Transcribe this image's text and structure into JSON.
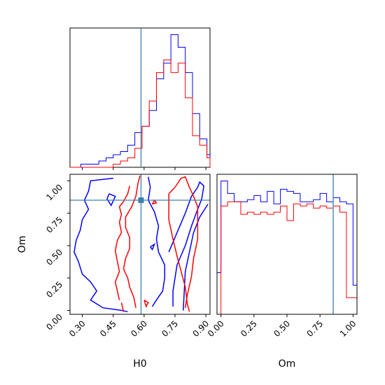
{
  "chart_data": [
    {
      "type": "histogram",
      "panel": "H0 marginal",
      "xlim": [
        0.24,
        0.92
      ],
      "xticks": [
        0.3,
        0.45,
        0.6,
        0.75,
        0.9
      ],
      "truth_x": 0.585,
      "bin_edges": [
        0.24,
        0.2575,
        0.275,
        0.2925,
        0.31,
        0.3275,
        0.345,
        0.3625,
        0.38,
        0.3975,
        0.415,
        0.4325,
        0.45,
        0.4675,
        0.485,
        0.5025,
        0.52,
        0.5375,
        0.555,
        0.5725,
        0.59,
        0.6075,
        0.625,
        0.6425,
        0.66,
        0.6775,
        0.695,
        0.7125,
        0.73,
        0.7475,
        0.765,
        0.7825,
        0.8,
        0.8175,
        0.835,
        0.8525,
        0.87,
        0.8875,
        0.905,
        0.92
      ],
      "series": [
        {
          "color": "#0000ff",
          "counts": [
            0,
            0,
            0,
            1,
            1,
            1,
            1,
            1,
            2,
            2,
            3,
            3,
            4,
            4,
            5,
            5,
            7,
            7,
            11,
            11,
            13,
            13,
            18,
            18,
            28,
            28,
            33,
            33,
            42,
            42,
            38,
            38,
            30,
            30,
            17,
            17,
            9,
            9,
            4
          ]
        },
        {
          "color": "#ff0000",
          "counts": [
            0,
            0,
            0,
            0,
            0,
            0,
            0,
            0,
            0,
            0,
            0,
            0,
            1,
            1,
            2,
            2,
            3,
            3,
            6,
            6,
            13,
            13,
            21,
            21,
            30,
            30,
            34,
            34,
            30,
            30,
            33,
            33,
            22,
            22,
            10,
            10,
            7,
            7,
            3
          ]
        }
      ]
    },
    {
      "type": "contour",
      "panel": "H0 vs Om joint",
      "xlabel": "H0",
      "ylabel": "Om",
      "xlim": [
        0.24,
        0.92
      ],
      "ylim": [
        -0.03,
        1.05
      ],
      "xticks": [
        0.3,
        0.45,
        0.6,
        0.75,
        0.9
      ],
      "yticks": [
        0.0,
        0.25,
        0.5,
        0.75,
        1.0
      ],
      "truth_point": [
        0.585,
        0.85
      ],
      "series": [
        {
          "color": "#0000ff",
          "contours": [
            [
              [
                0.45,
                1.02
              ],
              [
                0.34,
                1.0
              ],
              [
                0.33,
                0.92
              ],
              [
                0.31,
                0.85
              ],
              [
                0.33,
                0.78
              ],
              [
                0.3,
                0.7
              ],
              [
                0.29,
                0.62
              ],
              [
                0.27,
                0.54
              ],
              [
                0.26,
                0.45
              ],
              [
                0.28,
                0.38
              ],
              [
                0.3,
                0.28
              ],
              [
                0.34,
                0.22
              ],
              [
                0.37,
                0.15
              ],
              [
                0.34,
                0.08
              ],
              [
                0.4,
                0.02
              ],
              [
                0.49,
                0.0
              ],
              [
                0.52,
                -0.01
              ]
            ],
            [
              [
                0.43,
                0.9
              ],
              [
                0.46,
                0.88
              ],
              [
                0.44,
                0.81
              ],
              [
                0.42,
                0.86
              ],
              [
                0.43,
                0.9
              ]
            ],
            [
              [
                0.62,
                1.03
              ],
              [
                0.63,
                0.95
              ],
              [
                0.62,
                0.85
              ],
              [
                0.65,
                0.76
              ],
              [
                0.67,
                0.65
              ],
              [
                0.66,
                0.55
              ],
              [
                0.67,
                0.45
              ],
              [
                0.7,
                0.35
              ],
              [
                0.7,
                0.25
              ],
              [
                0.69,
                0.15
              ],
              [
                0.66,
                0.08
              ],
              [
                0.64,
                0.03
              ]
            ],
            [
              [
                0.72,
                0.45
              ],
              [
                0.76,
                0.6
              ],
              [
                0.8,
                0.75
              ],
              [
                0.83,
                0.88
              ],
              [
                0.86,
                0.95
              ],
              [
                0.87,
                0.99
              ],
              [
                0.89,
                0.96
              ],
              [
                0.88,
                0.86
              ],
              [
                0.86,
                0.78
              ],
              [
                0.83,
                0.65
              ],
              [
                0.8,
                0.5
              ],
              [
                0.76,
                0.35
              ],
              [
                0.74,
                0.15
              ],
              [
                0.74,
                0.03
              ]
            ],
            [
              [
                0.63,
                0.49
              ],
              [
                0.65,
                0.51
              ],
              [
                0.64,
                0.47
              ],
              [
                0.63,
                0.49
              ]
            ],
            [
              [
                0.79,
                0.0
              ],
              [
                0.8,
                0.3
              ],
              [
                0.82,
                0.45
              ],
              [
                0.84,
                0.6
              ],
              [
                0.87,
                0.72
              ],
              [
                0.91,
                0.82
              ]
            ]
          ]
        },
        {
          "color": "#ff0000",
          "contours": [
            [
              [
                0.56,
                0.02
              ],
              [
                0.55,
                0.1
              ],
              [
                0.53,
                0.18
              ],
              [
                0.52,
                0.25
              ],
              [
                0.5,
                0.32
              ],
              [
                0.51,
                0.4
              ],
              [
                0.53,
                0.48
              ],
              [
                0.53,
                0.56
              ],
              [
                0.51,
                0.64
              ],
              [
                0.51,
                0.72
              ],
              [
                0.54,
                0.8
              ],
              [
                0.56,
                0.88
              ],
              [
                0.57,
                0.98
              ],
              [
                0.58,
                1.04
              ]
            ],
            [
              [
                0.48,
                0.08
              ],
              [
                0.47,
                0.15
              ],
              [
                0.46,
                0.22
              ],
              [
                0.48,
                0.3
              ],
              [
                0.47,
                0.38
              ],
              [
                0.46,
                0.46
              ],
              [
                0.47,
                0.54
              ],
              [
                0.49,
                0.6
              ],
              [
                0.48,
                0.68
              ],
              [
                0.49,
                0.74
              ],
              [
                0.48,
                0.8
              ],
              [
                0.5,
                0.84
              ],
              [
                0.52,
                0.9
              ],
              [
                0.53,
                0.96
              ]
            ],
            [
              [
                0.49,
                0.06
              ],
              [
                0.5,
                -0.01
              ]
            ],
            [
              [
                0.6,
                0.08
              ],
              [
                0.62,
                0.06
              ],
              [
                0.61,
                0.03
              ],
              [
                0.6,
                0.08
              ]
            ],
            [
              [
                0.64,
                0.82
              ],
              [
                0.65,
                0.85
              ],
              [
                0.66,
                0.83
              ],
              [
                0.64,
                0.82
              ]
            ],
            [
              [
                0.72,
                0.9
              ],
              [
                0.72,
                0.7
              ],
              [
                0.74,
                0.55
              ],
              [
                0.76,
                0.42
              ],
              [
                0.78,
                0.3
              ],
              [
                0.8,
                0.18
              ],
              [
                0.81,
                0.05
              ],
              [
                0.82,
                -0.01
              ]
            ],
            [
              [
                0.75,
                0.95
              ],
              [
                0.78,
                1.02
              ],
              [
                0.8,
                1.03
              ],
              [
                0.82,
                0.95
              ],
              [
                0.84,
                0.88
              ],
              [
                0.86,
                0.8
              ],
              [
                0.86,
                0.66
              ],
              [
                0.86,
                0.55
              ],
              [
                0.84,
                0.4
              ],
              [
                0.83,
                0.26
              ],
              [
                0.81,
                0.12
              ],
              [
                0.8,
                0.02
              ]
            ],
            [
              [
                0.75,
                0.95
              ],
              [
                0.72,
                0.9
              ]
            ]
          ]
        }
      ]
    },
    {
      "type": "histogram",
      "panel": "Om marginal",
      "xlabel": "Om",
      "xlim": [
        -0.03,
        1.03
      ],
      "xticks": [
        0.0,
        0.25,
        0.5,
        0.75,
        1.0
      ],
      "truth_x": 0.85,
      "bin_edges": [
        -0.03,
        0.0,
        0.05,
        0.1,
        0.15,
        0.2,
        0.25,
        0.3,
        0.35,
        0.4,
        0.45,
        0.5,
        0.55,
        0.6,
        0.65,
        0.7,
        0.75,
        0.8,
        0.85,
        0.9,
        0.95,
        1.0,
        1.03
      ],
      "series": [
        {
          "color": "#0000ff",
          "counts": [
            20,
            64,
            58,
            54,
            54,
            55,
            57,
            54,
            59,
            53,
            60,
            59,
            58,
            54,
            54,
            55,
            58,
            54,
            56,
            54,
            53,
            14
          ]
        },
        {
          "color": "#ff0000",
          "counts": [
            0,
            52,
            54,
            54,
            48,
            49,
            48,
            49,
            48,
            49,
            52,
            45,
            53,
            52,
            53,
            51,
            52,
            51,
            52,
            49,
            8,
            8
          ]
        }
      ]
    }
  ]
}
